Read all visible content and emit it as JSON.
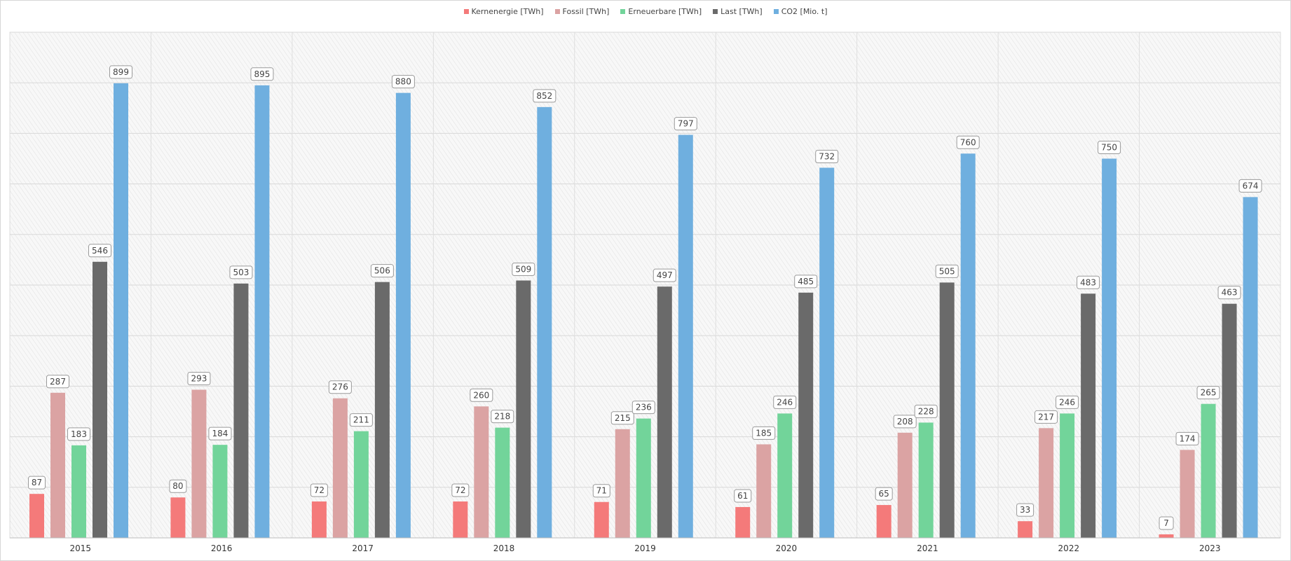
{
  "chart_data": {
    "type": "bar",
    "title": "",
    "xlabel": "",
    "ylabel": "",
    "ylim": [
      0,
      1000
    ],
    "grid": true,
    "legend_position": "top-center",
    "categories": [
      "2015",
      "2016",
      "2017",
      "2018",
      "2019",
      "2020",
      "2021",
      "2022",
      "2023"
    ],
    "series": [
      {
        "name": "Kernenergie [TWh]",
        "color": "#f47a7a",
        "values": [
          87,
          80,
          72,
          72,
          71,
          61,
          65,
          33,
          7
        ]
      },
      {
        "name": "Fossil [TWh]",
        "color": "#dba3a3",
        "values": [
          287,
          293,
          276,
          260,
          215,
          185,
          208,
          217,
          174
        ]
      },
      {
        "name": "Erneuerbare [TWh]",
        "color": "#72d49a",
        "values": [
          183,
          184,
          211,
          218,
          236,
          246,
          228,
          246,
          265
        ]
      },
      {
        "name": "Last [TWh]",
        "color": "#6a6a6a",
        "values": [
          546,
          503,
          506,
          509,
          497,
          485,
          505,
          483,
          463
        ]
      },
      {
        "name": "CO2 [Mio. t]",
        "color": "#6fafdf",
        "values": [
          899,
          895,
          880,
          852,
          797,
          732,
          760,
          750,
          674
        ]
      }
    ]
  }
}
